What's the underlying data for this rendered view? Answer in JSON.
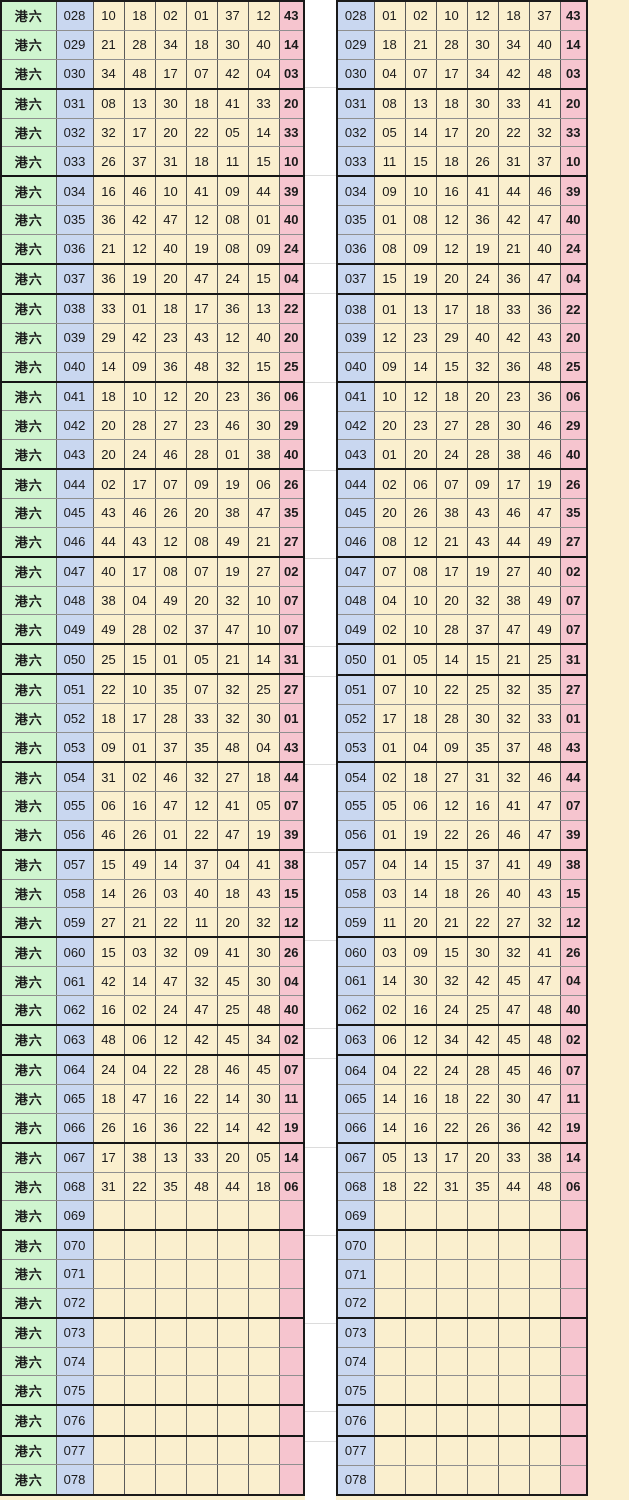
{
  "page": {
    "game_label": "港六",
    "colors": {
      "page_background": "#FAEFCE",
      "label_cell_bg": "#CFF5CF",
      "label_text": "#0a0af0",
      "issue_cell_bg": "#C9D7F0",
      "number_cell_bg": "#FAEFCE",
      "special_cell_bg": "#F6C5CF",
      "special_text": "#530D8D",
      "gap_bg": "#ffffff"
    }
  },
  "group_end_issues": [
    "030",
    "033",
    "036",
    "037",
    "040",
    "043",
    "046",
    "049",
    "050",
    "053",
    "056",
    "059",
    "062",
    "063",
    "066",
    "069",
    "072",
    "075",
    "076",
    "078"
  ],
  "left_table": {
    "label": "港六",
    "rows": [
      {
        "issue": "028",
        "nums": [
          "10",
          "18",
          "02",
          "01",
          "37",
          "12"
        ],
        "special": "43"
      },
      {
        "issue": "029",
        "nums": [
          "21",
          "28",
          "34",
          "18",
          "30",
          "40"
        ],
        "special": "14"
      },
      {
        "issue": "030",
        "nums": [
          "34",
          "48",
          "17",
          "07",
          "42",
          "04"
        ],
        "special": "03"
      },
      {
        "issue": "031",
        "nums": [
          "08",
          "13",
          "30",
          "18",
          "41",
          "33"
        ],
        "special": "20"
      },
      {
        "issue": "032",
        "nums": [
          "32",
          "17",
          "20",
          "22",
          "05",
          "14"
        ],
        "special": "33"
      },
      {
        "issue": "033",
        "nums": [
          "26",
          "37",
          "31",
          "18",
          "11",
          "15"
        ],
        "special": "10"
      },
      {
        "issue": "034",
        "nums": [
          "16",
          "46",
          "10",
          "41",
          "09",
          "44"
        ],
        "special": "39"
      },
      {
        "issue": "035",
        "nums": [
          "36",
          "42",
          "47",
          "12",
          "08",
          "01"
        ],
        "special": "40"
      },
      {
        "issue": "036",
        "nums": [
          "21",
          "12",
          "40",
          "19",
          "08",
          "09"
        ],
        "special": "24"
      },
      {
        "issue": "037",
        "nums": [
          "36",
          "19",
          "20",
          "47",
          "24",
          "15"
        ],
        "special": "04"
      },
      {
        "issue": "038",
        "nums": [
          "33",
          "01",
          "18",
          "17",
          "36",
          "13"
        ],
        "special": "22"
      },
      {
        "issue": "039",
        "nums": [
          "29",
          "42",
          "23",
          "43",
          "12",
          "40"
        ],
        "special": "20"
      },
      {
        "issue": "040",
        "nums": [
          "14",
          "09",
          "36",
          "48",
          "32",
          "15"
        ],
        "special": "25"
      },
      {
        "issue": "041",
        "nums": [
          "18",
          "10",
          "12",
          "20",
          "23",
          "36"
        ],
        "special": "06"
      },
      {
        "issue": "042",
        "nums": [
          "20",
          "28",
          "27",
          "23",
          "46",
          "30"
        ],
        "special": "29"
      },
      {
        "issue": "043",
        "nums": [
          "20",
          "24",
          "46",
          "28",
          "01",
          "38"
        ],
        "special": "40"
      },
      {
        "issue": "044",
        "nums": [
          "02",
          "17",
          "07",
          "09",
          "19",
          "06"
        ],
        "special": "26"
      },
      {
        "issue": "045",
        "nums": [
          "43",
          "46",
          "26",
          "20",
          "38",
          "47"
        ],
        "special": "35"
      },
      {
        "issue": "046",
        "nums": [
          "44",
          "43",
          "12",
          "08",
          "49",
          "21"
        ],
        "special": "27"
      },
      {
        "issue": "047",
        "nums": [
          "40",
          "17",
          "08",
          "07",
          "19",
          "27"
        ],
        "special": "02"
      },
      {
        "issue": "048",
        "nums": [
          "38",
          "04",
          "49",
          "20",
          "32",
          "10"
        ],
        "special": "07"
      },
      {
        "issue": "049",
        "nums": [
          "49",
          "28",
          "02",
          "37",
          "47",
          "10"
        ],
        "special": "07"
      },
      {
        "issue": "050",
        "nums": [
          "25",
          "15",
          "01",
          "05",
          "21",
          "14"
        ],
        "special": "31"
      },
      {
        "issue": "051",
        "nums": [
          "22",
          "10",
          "35",
          "07",
          "32",
          "25"
        ],
        "special": "27"
      },
      {
        "issue": "052",
        "nums": [
          "18",
          "17",
          "28",
          "33",
          "32",
          "30"
        ],
        "special": "01"
      },
      {
        "issue": "053",
        "nums": [
          "09",
          "01",
          "37",
          "35",
          "48",
          "04"
        ],
        "special": "43"
      },
      {
        "issue": "054",
        "nums": [
          "31",
          "02",
          "46",
          "32",
          "27",
          "18"
        ],
        "special": "44"
      },
      {
        "issue": "055",
        "nums": [
          "06",
          "16",
          "47",
          "12",
          "41",
          "05"
        ],
        "special": "07"
      },
      {
        "issue": "056",
        "nums": [
          "46",
          "26",
          "01",
          "22",
          "47",
          "19"
        ],
        "special": "39"
      },
      {
        "issue": "057",
        "nums": [
          "15",
          "49",
          "14",
          "37",
          "04",
          "41"
        ],
        "special": "38"
      },
      {
        "issue": "058",
        "nums": [
          "14",
          "26",
          "03",
          "40",
          "18",
          "43"
        ],
        "special": "15"
      },
      {
        "issue": "059",
        "nums": [
          "27",
          "21",
          "22",
          "11",
          "20",
          "32"
        ],
        "special": "12"
      },
      {
        "issue": "060",
        "nums": [
          "15",
          "03",
          "32",
          "09",
          "41",
          "30"
        ],
        "special": "26"
      },
      {
        "issue": "061",
        "nums": [
          "42",
          "14",
          "47",
          "32",
          "45",
          "30"
        ],
        "special": "04"
      },
      {
        "issue": "062",
        "nums": [
          "16",
          "02",
          "24",
          "47",
          "25",
          "48"
        ],
        "special": "40"
      },
      {
        "issue": "063",
        "nums": [
          "48",
          "06",
          "12",
          "42",
          "45",
          "34"
        ],
        "special": "02"
      },
      {
        "issue": "064",
        "nums": [
          "24",
          "04",
          "22",
          "28",
          "46",
          "45"
        ],
        "special": "07"
      },
      {
        "issue": "065",
        "nums": [
          "18",
          "47",
          "16",
          "22",
          "14",
          "30"
        ],
        "special": "11"
      },
      {
        "issue": "066",
        "nums": [
          "26",
          "16",
          "36",
          "22",
          "14",
          "42"
        ],
        "special": "19"
      },
      {
        "issue": "067",
        "nums": [
          "17",
          "38",
          "13",
          "33",
          "20",
          "05"
        ],
        "special": "14"
      },
      {
        "issue": "068",
        "nums": [
          "31",
          "22",
          "35",
          "48",
          "44",
          "18"
        ],
        "special": "06"
      },
      {
        "issue": "069",
        "nums": [],
        "special": ""
      },
      {
        "issue": "070",
        "nums": [],
        "special": ""
      },
      {
        "issue": "071",
        "nums": [],
        "special": ""
      },
      {
        "issue": "072",
        "nums": [],
        "special": ""
      },
      {
        "issue": "073",
        "nums": [],
        "special": ""
      },
      {
        "issue": "074",
        "nums": [],
        "special": ""
      },
      {
        "issue": "075",
        "nums": [],
        "special": ""
      },
      {
        "issue": "076",
        "nums": [],
        "special": ""
      },
      {
        "issue": "077",
        "nums": [],
        "special": ""
      },
      {
        "issue": "078",
        "nums": [],
        "special": ""
      }
    ]
  },
  "right_table": {
    "rows": [
      {
        "issue": "028",
        "nums": [
          "01",
          "02",
          "10",
          "12",
          "18",
          "37"
        ],
        "special": "43"
      },
      {
        "issue": "029",
        "nums": [
          "18",
          "21",
          "28",
          "30",
          "34",
          "40"
        ],
        "special": "14"
      },
      {
        "issue": "030",
        "nums": [
          "04",
          "07",
          "17",
          "34",
          "42",
          "48"
        ],
        "special": "03"
      },
      {
        "issue": "031",
        "nums": [
          "08",
          "13",
          "18",
          "30",
          "33",
          "41"
        ],
        "special": "20"
      },
      {
        "issue": "032",
        "nums": [
          "05",
          "14",
          "17",
          "20",
          "22",
          "32"
        ],
        "special": "33"
      },
      {
        "issue": "033",
        "nums": [
          "11",
          "15",
          "18",
          "26",
          "31",
          "37"
        ],
        "special": "10"
      },
      {
        "issue": "034",
        "nums": [
          "09",
          "10",
          "16",
          "41",
          "44",
          "46"
        ],
        "special": "39"
      },
      {
        "issue": "035",
        "nums": [
          "01",
          "08",
          "12",
          "36",
          "42",
          "47"
        ],
        "special": "40"
      },
      {
        "issue": "036",
        "nums": [
          "08",
          "09",
          "12",
          "19",
          "21",
          "40"
        ],
        "special": "24"
      },
      {
        "issue": "037",
        "nums": [
          "15",
          "19",
          "20",
          "24",
          "36",
          "47"
        ],
        "special": "04"
      },
      {
        "issue": "038",
        "nums": [
          "01",
          "13",
          "17",
          "18",
          "33",
          "36"
        ],
        "special": "22"
      },
      {
        "issue": "039",
        "nums": [
          "12",
          "23",
          "29",
          "40",
          "42",
          "43"
        ],
        "special": "20"
      },
      {
        "issue": "040",
        "nums": [
          "09",
          "14",
          "15",
          "32",
          "36",
          "48"
        ],
        "special": "25"
      },
      {
        "issue": "041",
        "nums": [
          "10",
          "12",
          "18",
          "20",
          "23",
          "36"
        ],
        "special": "06"
      },
      {
        "issue": "042",
        "nums": [
          "20",
          "23",
          "27",
          "28",
          "30",
          "46"
        ],
        "special": "29"
      },
      {
        "issue": "043",
        "nums": [
          "01",
          "20",
          "24",
          "28",
          "38",
          "46"
        ],
        "special": "40"
      },
      {
        "issue": "044",
        "nums": [
          "02",
          "06",
          "07",
          "09",
          "17",
          "19"
        ],
        "special": "26"
      },
      {
        "issue": "045",
        "nums": [
          "20",
          "26",
          "38",
          "43",
          "46",
          "47"
        ],
        "special": "35"
      },
      {
        "issue": "046",
        "nums": [
          "08",
          "12",
          "21",
          "43",
          "44",
          "49"
        ],
        "special": "27"
      },
      {
        "issue": "047",
        "nums": [
          "07",
          "08",
          "17",
          "19",
          "27",
          "40"
        ],
        "special": "02"
      },
      {
        "issue": "048",
        "nums": [
          "04",
          "10",
          "20",
          "32",
          "38",
          "49"
        ],
        "special": "07"
      },
      {
        "issue": "049",
        "nums": [
          "02",
          "10",
          "28",
          "37",
          "47",
          "49"
        ],
        "special": "07"
      },
      {
        "issue": "050",
        "nums": [
          "01",
          "05",
          "14",
          "15",
          "21",
          "25"
        ],
        "special": "31"
      },
      {
        "issue": "051",
        "nums": [
          "07",
          "10",
          "22",
          "25",
          "32",
          "35"
        ],
        "special": "27"
      },
      {
        "issue": "052",
        "nums": [
          "17",
          "18",
          "28",
          "30",
          "32",
          "33"
        ],
        "special": "01"
      },
      {
        "issue": "053",
        "nums": [
          "01",
          "04",
          "09",
          "35",
          "37",
          "48"
        ],
        "special": "43"
      },
      {
        "issue": "054",
        "nums": [
          "02",
          "18",
          "27",
          "31",
          "32",
          "46"
        ],
        "special": "44"
      },
      {
        "issue": "055",
        "nums": [
          "05",
          "06",
          "12",
          "16",
          "41",
          "47"
        ],
        "special": "07"
      },
      {
        "issue": "056",
        "nums": [
          "01",
          "19",
          "22",
          "26",
          "46",
          "47"
        ],
        "special": "39"
      },
      {
        "issue": "057",
        "nums": [
          "04",
          "14",
          "15",
          "37",
          "41",
          "49"
        ],
        "special": "38"
      },
      {
        "issue": "058",
        "nums": [
          "03",
          "14",
          "18",
          "26",
          "40",
          "43"
        ],
        "special": "15"
      },
      {
        "issue": "059",
        "nums": [
          "11",
          "20",
          "21",
          "22",
          "27",
          "32"
        ],
        "special": "12"
      },
      {
        "issue": "060",
        "nums": [
          "03",
          "09",
          "15",
          "30",
          "32",
          "41"
        ],
        "special": "26"
      },
      {
        "issue": "061",
        "nums": [
          "14",
          "30",
          "32",
          "42",
          "45",
          "47"
        ],
        "special": "04"
      },
      {
        "issue": "062",
        "nums": [
          "02",
          "16",
          "24",
          "25",
          "47",
          "48"
        ],
        "special": "40"
      },
      {
        "issue": "063",
        "nums": [
          "06",
          "12",
          "34",
          "42",
          "45",
          "48"
        ],
        "special": "02"
      },
      {
        "issue": "064",
        "nums": [
          "04",
          "22",
          "24",
          "28",
          "45",
          "46"
        ],
        "special": "07"
      },
      {
        "issue": "065",
        "nums": [
          "14",
          "16",
          "18",
          "22",
          "30",
          "47"
        ],
        "special": "11"
      },
      {
        "issue": "066",
        "nums": [
          "14",
          "16",
          "22",
          "26",
          "36",
          "42"
        ],
        "special": "19"
      },
      {
        "issue": "067",
        "nums": [
          "05",
          "13",
          "17",
          "20",
          "33",
          "38"
        ],
        "special": "14"
      },
      {
        "issue": "068",
        "nums": [
          "18",
          "22",
          "31",
          "35",
          "44",
          "48"
        ],
        "special": "06"
      },
      {
        "issue": "069",
        "nums": [],
        "special": ""
      },
      {
        "issue": "070",
        "nums": [],
        "special": ""
      },
      {
        "issue": "071",
        "nums": [],
        "special": ""
      },
      {
        "issue": "072",
        "nums": [],
        "special": ""
      },
      {
        "issue": "073",
        "nums": [],
        "special": ""
      },
      {
        "issue": "074",
        "nums": [],
        "special": ""
      },
      {
        "issue": "075",
        "nums": [],
        "special": ""
      },
      {
        "issue": "076",
        "nums": [],
        "special": ""
      },
      {
        "issue": "077",
        "nums": [],
        "special": ""
      },
      {
        "issue": "078",
        "nums": [],
        "special": ""
      }
    ]
  }
}
